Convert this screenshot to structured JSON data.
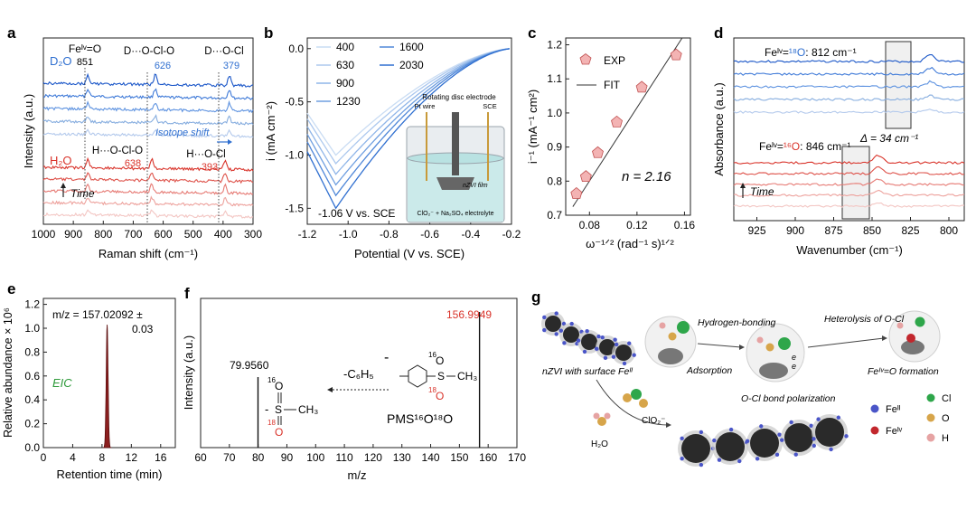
{
  "panels": {
    "a": {
      "letter": "a",
      "xlabel": "Raman shift (cm⁻¹)",
      "ylabel": "Intensity (a.u.)",
      "xticks": [
        "1000",
        "900",
        "800",
        "700",
        "600",
        "500",
        "400",
        "300"
      ],
      "label_d2o": "D₂O",
      "label_h2o": "H₂O",
      "feo": "Feᴵᵛ=O",
      "feo_val": "851",
      "docl_o": "D···O-Cl-O",
      "docl_o_val": "626",
      "docl": "D···O-Cl",
      "docl_val": "379",
      "hocl_o": "H···O-Cl-O",
      "hocl_o_val": "638",
      "hocl": "H···O-Cl",
      "hocl_val": "393",
      "isotope": "Isotope shift",
      "time": "Time"
    },
    "b": {
      "letter": "b",
      "xlabel": "Potential (V vs. SCE)",
      "ylabel": "i (mA cm⁻²)",
      "xticks": [
        "-1.2",
        "-1.0",
        "-0.8",
        "-0.6",
        "-0.4",
        "-0.2"
      ],
      "yticks": [
        "0.0",
        "-0.5",
        "-1.0",
        "-1.5"
      ],
      "legend": [
        "400",
        "630",
        "900",
        "1230",
        "1600",
        "2030"
      ],
      "annot": "-1.06 V vs. SCE",
      "inset_rde": "Rotating disc electrode",
      "inset_pt": "Pt wire",
      "inset_sce": "SCE",
      "inset_film": "nZVI film",
      "inset_elec": "ClO₂⁻ + Na₂SO₄ electrolyte"
    },
    "c": {
      "letter": "c",
      "xlabel": "ω⁻¹ᐟ² (rad⁻¹ s)¹ᐟ²",
      "ylabel": "i⁻¹ (mA⁻¹ cm²)",
      "xticks": [
        "0.08",
        "0.12",
        "0.16"
      ],
      "yticks": [
        "0.7",
        "0.8",
        "0.9",
        "1.0",
        "1.1",
        "1.2"
      ],
      "legend_exp": "EXP",
      "legend_fit": "FIT",
      "annot": "n = 2.16"
    },
    "d": {
      "letter": "d",
      "xlabel": "Wavenumber (cm⁻¹)",
      "ylabel": "Absorbance (a.u.)",
      "xticks": [
        "925",
        "900",
        "875",
        "850",
        "825",
        "800"
      ],
      "label18_pre": "Feᴵᵛ=",
      "label18_iso": "¹⁸O",
      "label18_post": ": 812 cm⁻¹",
      "label16_pre": "Feᴵᵛ=",
      "label16_iso": "¹⁶O",
      "label16_post": ": 846 cm⁻¹",
      "delta": "Δ = 34 cm⁻¹",
      "time": "Time"
    },
    "e": {
      "letter": "e",
      "xlabel": "Retention time (min)",
      "ylabel": "Relative abundance × 10⁶",
      "xticks": [
        "0",
        "4",
        "8",
        "12",
        "16"
      ],
      "yticks": [
        "0.0",
        "0.2",
        "0.4",
        "0.6",
        "0.8",
        "1.0",
        "1.2"
      ],
      "mz_line1": "m/z = 157.02092 ±",
      "mz_line2": "0.03",
      "eic": "EIC"
    },
    "f": {
      "letter": "f",
      "xlabel": "m/z",
      "ylabel": "Intensity (a.u.)",
      "xticks": [
        "60",
        "70",
        "80",
        "90",
        "100",
        "110",
        "120",
        "130",
        "140",
        "150",
        "160",
        "170"
      ],
      "peak1": "79.9560",
      "peak2": "156.9949",
      "loss": "-C₆H₅",
      "pms": "PMS¹⁶O¹⁸O",
      "o16a": "16",
      "o18a": "18",
      "o16b": "16",
      "o18b": "18",
      "atom_s": "S",
      "atom_o": "O",
      "ch3": "CH₃",
      "minus": "-"
    },
    "g": {
      "letter": "g",
      "nzvi": "nZVI with surface Feᴵᴵ",
      "adsorption": "Adsorption",
      "hbond": "Hydrogen-bonding",
      "hetero": "Heterolysis of O-Cl",
      "feo_form": "Feᴵᵛ=O formation",
      "polar": "O-Cl bond polarization",
      "clo2": "ClO₂⁻",
      "h2o": "H₂O",
      "leg_fe2": "Feᴵᴵ",
      "leg_fe4": "Feᴵᵛ",
      "leg_cl": "Cl",
      "leg_o": "O",
      "leg_h": "H"
    }
  },
  "colors": {
    "blue": "#2f6fd0",
    "red": "#d9342b",
    "pentagon": "#f3b3b3"
  },
  "chart_data": [
    {
      "type": "line",
      "panel": "a",
      "xlabel": "Raman shift (cm-1)",
      "ylabel": "Intensity (a.u.)",
      "xlim": [
        1000,
        300
      ],
      "series": [
        {
          "name": "D2O",
          "peaks": [
            851,
            626,
            379
          ]
        },
        {
          "name": "H2O",
          "peaks": [
            851,
            638,
            393
          ]
        }
      ]
    },
    {
      "type": "line",
      "panel": "b",
      "xlabel": "Potential (V vs. SCE)",
      "ylabel": "i (mA cm-2)",
      "xlim": [
        -1.2,
        -0.2
      ],
      "ylim": [
        -1.65,
        0.1
      ],
      "series": [
        {
          "name": "400",
          "min": -1.0
        },
        {
          "name": "630",
          "min": -1.08
        },
        {
          "name": "900",
          "min": -1.18
        },
        {
          "name": "1230",
          "min": -1.28
        },
        {
          "name": "1600",
          "min": -1.38
        },
        {
          "name": "2030",
          "min": -1.5
        }
      ]
    },
    {
      "type": "scatter",
      "panel": "c",
      "xlabel": "omega^-1/2 (rad^-1 s)^1/2",
      "ylabel": "i^-1 (mA^-1 cm2)",
      "xlim": [
        0.06,
        0.165
      ],
      "ylim": [
        0.7,
        1.22
      ],
      "points": [
        {
          "x": 0.069,
          "y": 0.765
        },
        {
          "x": 0.077,
          "y": 0.815
        },
        {
          "x": 0.087,
          "y": 0.885
        },
        {
          "x": 0.103,
          "y": 0.975
        },
        {
          "x": 0.124,
          "y": 1.077
        },
        {
          "x": 0.153,
          "y": 1.172
        }
      ],
      "fit": [
        [
          0.066,
          0.725
        ],
        [
          0.158,
          1.22
        ]
      ]
    },
    {
      "type": "line",
      "panel": "d",
      "xlabel": "Wavenumber (cm-1)",
      "ylabel": "Absorbance (a.u.)",
      "xlim": [
        940,
        790
      ],
      "series": [
        {
          "name": "Fe(IV)=18O",
          "peak": 812
        },
        {
          "name": "Fe(IV)=16O",
          "peak": 846
        }
      ]
    },
    {
      "type": "line",
      "panel": "e",
      "xlabel": "Retention time (min)",
      "ylabel": "Relative abundance x 10^6",
      "xlim": [
        0,
        18
      ],
      "ylim": [
        0,
        1.25
      ],
      "peak": {
        "x": 8.7,
        "y": 1.03
      }
    },
    {
      "type": "bar",
      "panel": "f",
      "xlabel": "m/z",
      "ylabel": "Intensity (a.u.)",
      "xlim": [
        60,
        170
      ],
      "peaks": [
        {
          "x": 79.956,
          "rel": 0.52
        },
        {
          "x": 156.9949,
          "rel": 1.0
        }
      ]
    }
  ]
}
